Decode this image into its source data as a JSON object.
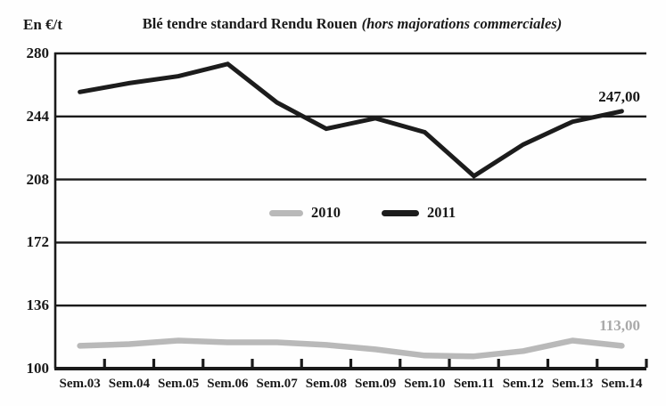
{
  "header": {
    "title_main": "Blé tendre standard Rendu Rouen",
    "title_note": "(hors majorations commerciales)",
    "y_axis_unit": "En €/t"
  },
  "colors": {
    "axis": "#1a1a1a",
    "series_2010": "#b9b9b9",
    "series_2011": "#1c1c1c",
    "annotation_2010": "#a9a9a9",
    "annotation_2011": "#161616"
  },
  "chart_data": {
    "type": "line",
    "title": "Blé tendre standard Rendu Rouen (hors majorations commerciales)",
    "xlabel": "",
    "ylabel": "En €/t",
    "ylim": [
      100,
      280
    ],
    "yticks": [
      100,
      136,
      172,
      208,
      244,
      280
    ],
    "grid": true,
    "legend_position": "inside-center",
    "categories": [
      "Sem.03",
      "Sem.04",
      "Sem.05",
      "Sem.06",
      "Sem.07",
      "Sem.08",
      "Sem.09",
      "Sem.10",
      "Sem.11",
      "Sem.12",
      "Sem.13",
      "Sem.14"
    ],
    "series": [
      {
        "name": "2010",
        "color": "#b9b9b9",
        "values": [
          113,
          114,
          116,
          115,
          115,
          113.5,
          111,
          107.5,
          107,
          110,
          116,
          113
        ],
        "end_label": "113,00"
      },
      {
        "name": "2011",
        "color": "#1c1c1c",
        "values": [
          258,
          263,
          267,
          274,
          252,
          237,
          243,
          235,
          210,
          228,
          241,
          247
        ],
        "end_label": "247,00"
      }
    ]
  }
}
